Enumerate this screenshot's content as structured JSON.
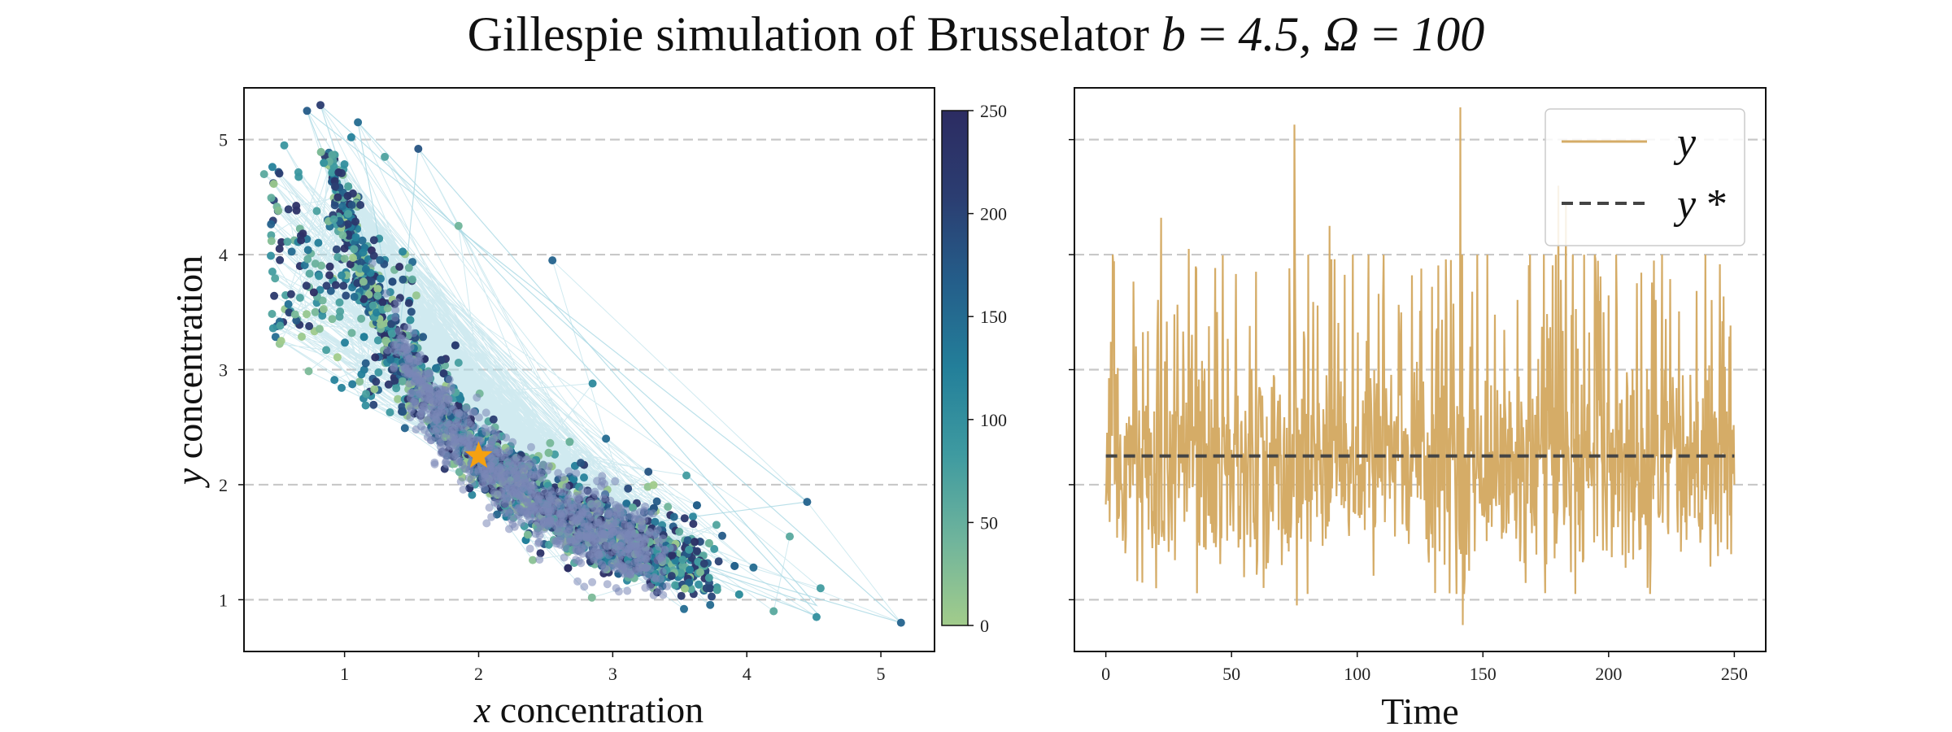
{
  "figure": {
    "title_prefix": "Gillespie simulation of Brusselator ",
    "title_math": "b = 4.5, Ω = 100"
  },
  "chart_data": [
    {
      "type": "scatter",
      "xlabel_var": "x",
      "xlabel_rest": " concentration",
      "ylabel_var": "y",
      "ylabel_rest": " concentration",
      "xlim": [
        0.25,
        5.4
      ],
      "ylim": [
        0.55,
        5.45
      ],
      "xticks": [
        1,
        2,
        3,
        4,
        5
      ],
      "yticks": [
        1,
        2,
        3,
        4,
        5
      ],
      "grid": "y-dashed",
      "colormap": {
        "name": "crest",
        "stops": [
          "#a2cc8b",
          "#6fb49c",
          "#3e9aa0",
          "#237f9a",
          "#245e8a",
          "#2b3d71",
          "#2c2c62"
        ]
      },
      "colorbar": {
        "ticks": [
          0,
          50,
          100,
          150,
          200,
          250
        ],
        "range": [
          0,
          250
        ]
      },
      "fixed_point": {
        "x": 2.0,
        "y": 2.25,
        "marker": "star",
        "color": "#f5a111"
      },
      "trajectory_color": "#a9d8e3",
      "overlay_color": "#7a86b6",
      "points_sample": [
        {
          "x": 0.82,
          "y": 5.3,
          "t": 210
        },
        {
          "x": 0.72,
          "y": 5.25,
          "t": 170
        },
        {
          "x": 1.1,
          "y": 5.15,
          "t": 150
        },
        {
          "x": 1.05,
          "y": 5.02,
          "t": 120
        },
        {
          "x": 0.55,
          "y": 4.95,
          "t": 90
        },
        {
          "x": 1.55,
          "y": 4.92,
          "t": 180
        },
        {
          "x": 0.4,
          "y": 4.7,
          "t": 60
        },
        {
          "x": 1.3,
          "y": 4.85,
          "t": 70
        },
        {
          "x": 1.85,
          "y": 4.25,
          "t": 40
        },
        {
          "x": 2.55,
          "y": 3.95,
          "t": 160
        },
        {
          "x": 2.85,
          "y": 2.88,
          "t": 110
        },
        {
          "x": 2.95,
          "y": 2.4,
          "t": 150
        },
        {
          "x": 3.55,
          "y": 2.08,
          "t": 80
        },
        {
          "x": 4.45,
          "y": 1.85,
          "t": 160
        },
        {
          "x": 4.32,
          "y": 1.55,
          "t": 60
        },
        {
          "x": 4.05,
          "y": 1.28,
          "t": 150
        },
        {
          "x": 4.55,
          "y": 1.1,
          "t": 80
        },
        {
          "x": 4.2,
          "y": 0.9,
          "t": 60
        },
        {
          "x": 4.52,
          "y": 0.85,
          "t": 100
        },
        {
          "x": 5.15,
          "y": 0.8,
          "t": 160
        },
        {
          "x": 0.45,
          "y": 3.99,
          "t": 100
        },
        {
          "x": 3.7,
          "y": 1.1,
          "t": 200
        }
      ]
    },
    {
      "type": "line",
      "xlabel": "Time",
      "xlim": [
        -12.5,
        262.5
      ],
      "ylim": [
        0.55,
        5.45
      ],
      "xticks": [
        0,
        50,
        100,
        150,
        200,
        250
      ],
      "yticks": [
        1,
        2,
        3,
        4,
        5
      ],
      "grid": "y-dashed",
      "series": [
        {
          "name": "y",
          "color": "#d5ac67",
          "style": "solid",
          "summary": {
            "t_start": 0,
            "t_end": 250,
            "min": 0.78,
            "max": 5.28,
            "mean": 2.25
          }
        },
        {
          "name": "y *",
          "color": "#444444",
          "style": "dashed",
          "value": 2.25
        }
      ],
      "peaks": [
        {
          "t": 75,
          "y": 5.13
        },
        {
          "t": 141,
          "y": 5.28
        },
        {
          "t": 180,
          "y": 4.6
        },
        {
          "t": 183,
          "y": 4.45
        },
        {
          "t": 22,
          "y": 4.32
        },
        {
          "t": 89,
          "y": 4.25
        },
        {
          "t": 33,
          "y": 4.05
        },
        {
          "t": 76,
          "y": 0.95
        },
        {
          "t": 142,
          "y": 0.78
        },
        {
          "t": 20,
          "y": 1.1
        },
        {
          "t": 250,
          "y": 2.0
        }
      ],
      "legend": {
        "placement": "top-right"
      }
    }
  ]
}
